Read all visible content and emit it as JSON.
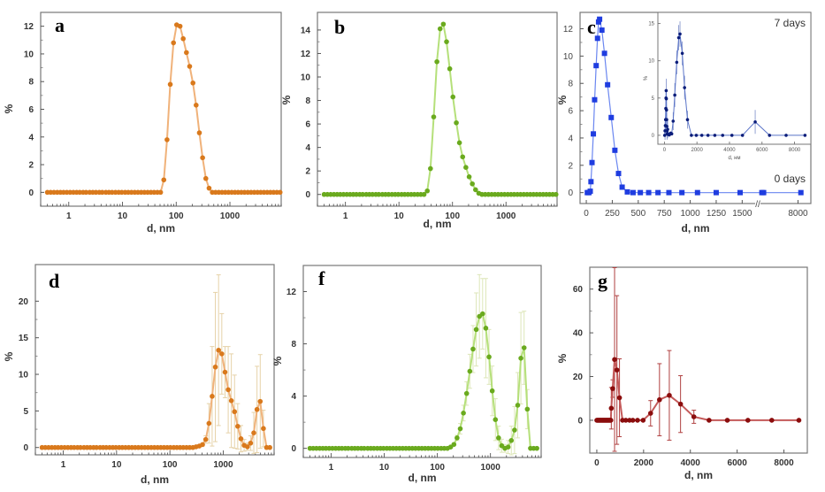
{
  "figure": {
    "panels": [
      "a",
      "b",
      "c",
      "d",
      "f",
      "g"
    ]
  },
  "chart_data": [
    {
      "id": "a",
      "type": "scatter",
      "letter": "a",
      "xscale": "log",
      "xlabel": "d, nm",
      "ylabel": "%",
      "xlim": [
        0.3,
        9000
      ],
      "ylim": [
        -1,
        13
      ],
      "xticks": [
        1,
        10,
        100,
        1000
      ],
      "xtick_labels": [
        "1",
        "10",
        "100",
        "1000"
      ],
      "yticks": [
        0,
        2,
        4,
        6,
        8,
        10,
        12
      ],
      "ytick_labels": [
        "0",
        "2",
        "4",
        "6",
        "8",
        "10",
        "12"
      ],
      "color": "#d9791c",
      "line_color": "#f0b27a",
      "x": [
        0.4,
        0.46,
        0.53,
        0.61,
        0.7,
        0.8,
        0.92,
        1.06,
        1.22,
        1.4,
        1.6,
        1.85,
        2.1,
        2.45,
        2.8,
        3.2,
        3.7,
        4.2,
        4.9,
        5.6,
        6.4,
        7.4,
        8.5,
        9.7,
        11.2,
        12.8,
        14.7,
        16.9,
        19.4,
        22.3,
        25.6,
        29.4,
        33.8,
        38.8,
        44.6,
        51.2,
        58.8,
        67.5,
        77.5,
        89,
        102,
        118,
        135,
        155,
        178,
        205,
        235,
        270,
        310,
        356,
        409,
        470,
        540,
        620,
        712,
        818,
        940,
        1080,
        1240,
        1420,
        1630,
        1870,
        2150,
        2470,
        2840,
        3260,
        3740,
        4300,
        4940,
        5670,
        6500,
        7470,
        8580
      ],
      "values": [
        0,
        0,
        0,
        0,
        0,
        0,
        0,
        0,
        0,
        0,
        0,
        0,
        0,
        0,
        0,
        0,
        0,
        0,
        0,
        0,
        0,
        0,
        0,
        0,
        0,
        0,
        0,
        0,
        0,
        0,
        0,
        0,
        0,
        0,
        0,
        0,
        0.9,
        3.8,
        7.8,
        10.8,
        12.1,
        12.0,
        11.1,
        10.1,
        9.1,
        7.9,
        6.3,
        4.3,
        2.5,
        1.0,
        0.3,
        0,
        0,
        0,
        0,
        0,
        0,
        0,
        0,
        0,
        0,
        0,
        0,
        0,
        0,
        0,
        0,
        0,
        0,
        0,
        0,
        0,
        0
      ]
    },
    {
      "id": "b",
      "type": "scatter",
      "letter": "b",
      "xscale": "log",
      "xlabel": "d, nm",
      "ylabel": "%",
      "xlim": [
        0.3,
        9000
      ],
      "ylim": [
        -1,
        15.5
      ],
      "xticks": [
        1,
        10,
        100,
        1000
      ],
      "xtick_labels": [
        "1",
        "10",
        "100",
        "1000"
      ],
      "yticks": [
        0,
        2,
        4,
        6,
        8,
        10,
        12,
        14
      ],
      "ytick_labels": [
        "0",
        "2",
        "4",
        "6",
        "8",
        "10",
        "12",
        "14"
      ],
      "color": "#6aaa1e",
      "line_color": "#b5e07a",
      "x": [
        0.4,
        0.46,
        0.53,
        0.61,
        0.7,
        0.8,
        0.92,
        1.06,
        1.22,
        1.4,
        1.6,
        1.85,
        2.1,
        2.45,
        2.8,
        3.2,
        3.7,
        4.2,
        4.9,
        5.6,
        6.4,
        7.4,
        8.5,
        9.7,
        11.2,
        12.8,
        14.7,
        16.9,
        19.4,
        22.3,
        25.6,
        29.4,
        33.8,
        38.8,
        44.6,
        51.2,
        58.8,
        67.5,
        77.5,
        89,
        102,
        118,
        135,
        155,
        178,
        205,
        235,
        270,
        310,
        356,
        409,
        470,
        540,
        620,
        712,
        818,
        940,
        1080,
        1240,
        1420,
        1630,
        1870,
        2150,
        2470,
        2840,
        3260,
        3740,
        4300,
        4940,
        5670,
        6500,
        7470,
        8580
      ],
      "values": [
        0,
        0,
        0,
        0,
        0,
        0,
        0,
        0,
        0,
        0,
        0,
        0,
        0,
        0,
        0,
        0,
        0,
        0,
        0,
        0,
        0,
        0,
        0,
        0,
        0,
        0,
        0,
        0,
        0,
        0,
        0,
        0,
        0.3,
        2.2,
        6.6,
        11.3,
        14.1,
        14.5,
        13.0,
        10.7,
        8.3,
        6.1,
        4.4,
        3.2,
        2.3,
        1.5,
        0.9,
        0.4,
        0.1,
        0,
        0,
        0,
        0,
        0,
        0,
        0,
        0,
        0,
        0,
        0,
        0,
        0,
        0,
        0,
        0,
        0,
        0,
        0,
        0,
        0,
        0,
        0,
        0
      ]
    },
    {
      "id": "c",
      "type": "scatter",
      "letter": "c",
      "xscale": "broken-linear",
      "xlabel": "d, nm",
      "ylabel": "%",
      "xlim": [
        -60,
        1650
      ],
      "break_label": "//",
      "ylim": [
        -0.8,
        13.2
      ],
      "xtick_labels": [
        "0",
        "250",
        "500",
        "750",
        "1000",
        "1250",
        "1500",
        "8000"
      ],
      "xticks": [
        0,
        250,
        500,
        750,
        1000,
        1250,
        1500,
        8000
      ],
      "yticks": [
        0,
        2,
        4,
        6,
        8,
        10,
        12
      ],
      "ytick_labels": [
        "0",
        "2",
        "4",
        "6",
        "8",
        "10",
        "12"
      ],
      "color": "#1f3de0",
      "line_color": "#6a86f0",
      "annotation_main": "0 days",
      "x": [
        10,
        25,
        38,
        45,
        55,
        68,
        80,
        95,
        108,
        118,
        128,
        150,
        175,
        205,
        240,
        275,
        310,
        345,
        395,
        450,
        520,
        600,
        690,
        795,
        920,
        1070,
        1250,
        1480,
        1750,
        2050,
        8500
      ],
      "values": [
        0,
        0,
        0.1,
        0.8,
        2.2,
        4.3,
        6.8,
        9.3,
        11.3,
        12.5,
        12.7,
        11.9,
        10.2,
        7.9,
        5.5,
        3.1,
        1.4,
        0.4,
        0.05,
        0,
        0,
        0,
        0,
        0,
        0,
        0,
        0,
        0,
        0,
        0,
        0
      ],
      "inset": {
        "annotation": "7 days",
        "xlabel": "d, нм",
        "ylabel": "%",
        "xlim": [
          -400,
          9000
        ],
        "ylim": [
          -1.2,
          16.5
        ],
        "xticks": [
          0,
          2000,
          4000,
          6000,
          8000
        ],
        "xtick_labels": [
          "0",
          "2000",
          "4000",
          "6000",
          "8000"
        ],
        "yticks": [
          0,
          5,
          10,
          15
        ],
        "ytick_labels": [
          "0",
          "5",
          "10",
          "15"
        ],
        "color": "#0b1d7a",
        "line_color": "#5a74c8",
        "x": [
          20,
          40,
          60,
          75,
          90,
          100,
          110,
          120,
          130,
          140,
          150,
          160,
          180,
          200,
          250,
          300,
          380,
          450,
          540,
          640,
          760,
          880,
          960,
          1100,
          1240,
          1420,
          1660,
          1960,
          2300,
          2680,
          3100,
          3580,
          4150,
          4800,
          5580,
          6460,
          7480,
          8640
        ],
        "values": [
          0,
          0.6,
          1.3,
          2.1,
          3.6,
          5.0,
          6.0,
          4.9,
          3.4,
          2.1,
          1.2,
          0.6,
          0.2,
          0.8,
          0.1,
          0.05,
          0.3,
          0.2,
          1.9,
          5.4,
          9.8,
          13.1,
          13.6,
          11.0,
          6.4,
          2.1,
          0,
          0,
          0,
          0,
          0,
          0,
          0,
          0,
          1.8,
          0,
          0,
          0
        ]
      }
    },
    {
      "id": "d",
      "type": "scatter",
      "letter": "d",
      "xscale": "log",
      "xlabel": "d, nm",
      "ylabel": "%",
      "xlim": [
        0.3,
        9000
      ],
      "ylim": [
        -1,
        25
      ],
      "xticks": [
        1,
        10,
        100,
        1000
      ],
      "xtick_labels": [
        "1",
        "10",
        "100",
        "1000"
      ],
      "yticks": [
        0,
        5,
        10,
        15,
        20
      ],
      "ytick_labels": [
        "0",
        "5",
        "10",
        "15",
        "20"
      ],
      "color": "#d9791c",
      "line_color": "#f0b27a",
      "error_color": "#e6d2a8",
      "x": [
        0.4,
        0.46,
        0.53,
        0.61,
        0.7,
        0.8,
        0.92,
        1.06,
        1.22,
        1.4,
        1.6,
        1.85,
        2.1,
        2.45,
        2.8,
        3.2,
        3.7,
        4.2,
        4.9,
        5.6,
        6.4,
        7.4,
        8.5,
        9.7,
        11.2,
        12.8,
        14.7,
        16.9,
        19.4,
        22.3,
        25.6,
        29.4,
        33.8,
        38.8,
        44.6,
        51.2,
        58.8,
        67.5,
        77.5,
        89,
        102,
        118,
        135,
        155,
        178,
        205,
        235,
        270,
        310,
        356,
        409,
        470,
        540,
        620,
        712,
        818,
        940,
        1080,
        1240,
        1420,
        1630,
        1870,
        2150,
        2470,
        2840,
        3260,
        3740,
        4300,
        4940,
        5670,
        6500,
        7470
      ],
      "values": [
        0,
        0,
        0,
        0,
        0,
        0,
        0,
        0,
        0,
        0,
        0,
        0,
        0,
        0,
        0,
        0,
        0,
        0,
        0,
        0,
        0,
        0,
        0,
        0,
        0,
        0,
        0,
        0,
        0,
        0,
        0,
        0,
        0,
        0,
        0,
        0,
        0,
        0,
        0,
        0,
        0,
        0,
        0,
        0,
        0,
        0,
        0,
        0,
        0.1,
        0.2,
        0.4,
        1.1,
        3.3,
        7.0,
        11.0,
        13.3,
        12.8,
        10.3,
        7.9,
        6.4,
        4.9,
        2.9,
        1.2,
        0.3,
        0.1,
        0.6,
        2.0,
        5.2,
        6.3,
        2.6,
        0,
        0
      ],
      "errors": [
        0,
        0,
        0,
        0,
        0,
        0,
        0,
        0,
        0,
        0,
        0,
        0,
        0,
        0,
        0,
        0,
        0,
        0,
        0,
        0,
        0,
        0,
        0,
        0,
        0,
        0,
        0,
        0,
        0,
        0,
        0,
        0,
        0,
        0,
        0,
        0,
        0,
        0,
        0,
        0,
        0,
        0,
        0,
        0,
        0,
        0,
        0,
        0,
        0,
        0,
        0.2,
        0.5,
        2.7,
        6.8,
        10.2,
        10.3,
        5.5,
        3.5,
        5.9,
        6.4,
        5.0,
        3.1,
        1.8,
        0.8,
        0.5,
        1.0,
        2.8,
        5.9,
        6.4,
        2.5,
        0,
        0
      ]
    },
    {
      "id": "f",
      "type": "scatter",
      "letter": "f",
      "xscale": "log",
      "xlabel": "d, nm",
      "ylabel": "%",
      "xlim": [
        0.3,
        9000
      ],
      "ylim": [
        -0.7,
        14
      ],
      "xticks": [
        1,
        10,
        100,
        1000
      ],
      "xtick_labels": [
        "1",
        "10",
        "100",
        "1000"
      ],
      "yticks": [
        0,
        4,
        8,
        12
      ],
      "ytick_labels": [
        "0",
        "4",
        "8",
        "12"
      ],
      "color": "#6aaa1e",
      "line_color": "#b5e07a",
      "error_color": "#dde6b8",
      "x": [
        0.4,
        0.46,
        0.53,
        0.61,
        0.7,
        0.8,
        0.92,
        1.06,
        1.22,
        1.4,
        1.6,
        1.85,
        2.1,
        2.45,
        2.8,
        3.2,
        3.7,
        4.2,
        4.9,
        5.6,
        6.4,
        7.4,
        8.5,
        9.7,
        11.2,
        12.8,
        14.7,
        16.9,
        19.4,
        22.3,
        25.6,
        29.4,
        33.8,
        38.8,
        44.6,
        51.2,
        58.8,
        67.5,
        77.5,
        89,
        102,
        118,
        135,
        155,
        178,
        205,
        235,
        270,
        310,
        356,
        409,
        470,
        540,
        620,
        712,
        818,
        940,
        1080,
        1240,
        1420,
        1630,
        1870,
        2150,
        2470,
        2840,
        3260,
        3740,
        4300,
        4940,
        5670,
        6500,
        7470
      ],
      "values": [
        0,
        0,
        0,
        0,
        0,
        0,
        0,
        0,
        0,
        0,
        0,
        0,
        0,
        0,
        0,
        0,
        0,
        0,
        0,
        0,
        0,
        0,
        0,
        0,
        0,
        0,
        0,
        0,
        0,
        0,
        0,
        0,
        0,
        0,
        0,
        0,
        0,
        0,
        0,
        0,
        0,
        0,
        0,
        0,
        0.1,
        0.3,
        0.8,
        1.5,
        2.7,
        4.2,
        5.9,
        7.6,
        9.1,
        10.1,
        10.3,
        9.2,
        7.0,
        4.4,
        2.2,
        0.8,
        0.2,
        0,
        0.1,
        0.6,
        1.4,
        3.3,
        6.9,
        7.7,
        3.0,
        0,
        0,
        0
      ],
      "errors": [
        0,
        0,
        0,
        0,
        0,
        0,
        0,
        0,
        0,
        0,
        0,
        0,
        0,
        0,
        0,
        0,
        0,
        0,
        0,
        0,
        0,
        0,
        0,
        0,
        0,
        0,
        0,
        0,
        0,
        0,
        0,
        0,
        0,
        0,
        0,
        0,
        0,
        0,
        0,
        0,
        0,
        0,
        0,
        0,
        0,
        0,
        0.2,
        0.4,
        0.6,
        0.9,
        1.3,
        1.8,
        2.8,
        3.2,
        2.7,
        3.8,
        2.1,
        1.9,
        1.6,
        0.9,
        0.5,
        0.3,
        0.5,
        1.1,
        1.8,
        2.5,
        3.5,
        2.8,
        1.5,
        0,
        0,
        0
      ]
    },
    {
      "id": "g",
      "type": "scatter",
      "letter": "g",
      "xscale": "linear",
      "xlabel": "d, nm",
      "ylabel": "%",
      "xlim": [
        -300,
        9000
      ],
      "ylim": [
        -15,
        70
      ],
      "xticks": [
        0,
        2000,
        4000,
        6000,
        8000
      ],
      "xtick_labels": [
        "0",
        "2000",
        "4000",
        "6000",
        "8000"
      ],
      "yticks": [
        0,
        20,
        40,
        60
      ],
      "ytick_labels": [
        "0",
        "20",
        "40",
        "60"
      ],
      "color": "#8b0d0d",
      "line_color": "#c45a5a",
      "error_color": "#b04040",
      "x": [
        0,
        30,
        60,
        90,
        120,
        150,
        180,
        210,
        240,
        270,
        300,
        330,
        360,
        390,
        420,
        450,
        480,
        510,
        540,
        570,
        600,
        620,
        680,
        760,
        860,
        970,
        1100,
        1240,
        1400,
        1540,
        1740,
        1980,
        2300,
        2680,
        3100,
        3580,
        4150,
        4800,
        5580,
        6460,
        7480,
        8640
      ],
      "values": [
        0,
        0,
        0,
        0,
        0,
        0,
        0,
        0,
        0,
        0,
        0,
        0,
        0,
        0,
        0,
        0,
        0,
        0,
        0,
        0,
        0,
        5.5,
        14.5,
        27.8,
        23.0,
        10.3,
        0,
        0,
        0,
        0,
        0,
        0,
        3.2,
        9.4,
        11.4,
        7.4,
        1.6,
        0,
        0,
        0,
        0,
        0
      ],
      "errors": [
        0,
        0,
        0,
        0,
        0,
        0,
        0,
        0,
        0,
        0,
        0,
        0,
        0,
        0,
        0,
        0,
        0,
        0,
        0,
        0,
        0,
        9.5,
        4.0,
        42.0,
        34.0,
        17.8,
        0,
        0,
        0,
        0,
        0,
        0,
        5.8,
        16.5,
        20.5,
        13.0,
        3.0,
        0,
        0,
        0,
        0,
        0
      ]
    }
  ]
}
